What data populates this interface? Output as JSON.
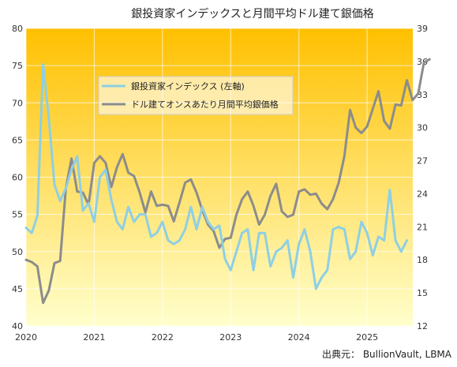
{
  "chart_data": {
    "type": "line",
    "title": "銀投資家インデックスと月間平均ドル建て銀価格",
    "source": "出典元： BullionVault, LBMA",
    "x_tick_labels": [
      "2020",
      "2021",
      "2022",
      "2023",
      "2024",
      "2025"
    ],
    "y_left": {
      "range": [
        40,
        80
      ],
      "ticks": [
        "40",
        "45",
        "50",
        "55",
        "60",
        "65",
        "70",
        "75",
        "80"
      ]
    },
    "y_right": {
      "range": [
        12,
        39
      ],
      "ticks": [
        "12",
        "15",
        "18",
        "21",
        "24",
        "27",
        "30",
        "33",
        "36",
        "39"
      ]
    },
    "grid": true,
    "legend_position": "top-left-inside",
    "series": [
      {
        "name": "銀投資家インデックス (左軸)",
        "axis": "left",
        "color": "#8ecfe4",
        "start": "2020-01",
        "values": [
          53.2,
          52.5,
          54.8,
          75.2,
          68.0,
          59.0,
          56.8,
          58.5,
          61.0,
          62.8,
          55.5,
          56.5,
          54.0,
          60.0,
          61.0,
          57.0,
          54.0,
          53.0,
          56.0,
          54.0,
          55.0,
          55.0,
          52.0,
          52.5,
          54.0,
          51.5,
          51.0,
          51.5,
          53.0,
          56.0,
          53.0,
          56.0,
          54.0,
          53.0,
          53.5,
          49.0,
          47.5,
          50.0,
          52.5,
          53.0,
          47.5,
          52.5,
          52.5,
          48.0,
          50.0,
          50.5,
          51.5,
          46.5,
          51.0,
          53.0,
          50.0,
          45.0,
          46.5,
          47.5,
          53.0,
          53.3,
          53.0,
          49.0,
          50.0,
          54.0,
          52.5,
          49.5,
          52.0,
          51.5,
          58.3,
          51.5,
          50.0,
          51.5
        ]
      },
      {
        "name": "ドル建てオンスあたり月間平均銀価格",
        "axis": "right",
        "color": "#8c8c8c",
        "start": "2020-01",
        "values": [
          18.0,
          17.8,
          17.4,
          14.1,
          15.2,
          17.7,
          17.9,
          24.5,
          27.2,
          24.2,
          24.1,
          23.0,
          26.8,
          27.4,
          26.8,
          24.6,
          26.4,
          27.6,
          25.9,
          25.6,
          24.1,
          22.3,
          24.2,
          22.9,
          23.0,
          22.9,
          21.5,
          23.2,
          25.0,
          25.3,
          24.1,
          22.5,
          21.2,
          20.6,
          19.1,
          19.9,
          20.0,
          22.1,
          23.5,
          24.2,
          22.9,
          21.2,
          22.1,
          23.8,
          24.9,
          22.4,
          21.9,
          22.1,
          24.2,
          24.4,
          23.9,
          24.0,
          23.1,
          22.6,
          23.5,
          25.0,
          27.4,
          31.6,
          30.0,
          29.5,
          30.1,
          31.7,
          33.3,
          30.6,
          29.9,
          32.1,
          32.0,
          34.3,
          32.5,
          33.1,
          35.9,
          36.2
        ]
      }
    ]
  }
}
